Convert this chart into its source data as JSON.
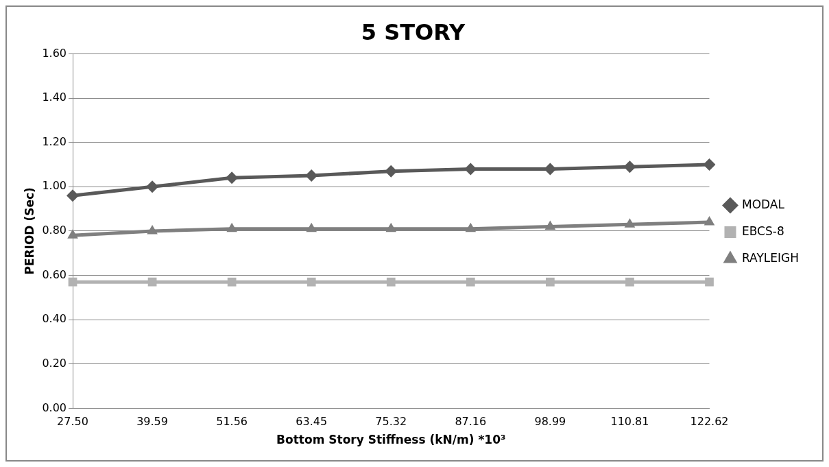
{
  "chart_data": {
    "type": "line",
    "title": "5 STORY",
    "xlabel": "Bottom Story Stiffness (kN/m) *10³",
    "ylabel": "PERIOD (Sec)",
    "categories": [
      "27.50",
      "39.59",
      "51.56",
      "63.45",
      "75.32",
      "87.16",
      "98.99",
      "110.81",
      "122.62"
    ],
    "series": [
      {
        "name": "MODAL",
        "color": "#595959",
        "marker": "diamond",
        "values": [
          0.96,
          1.0,
          1.04,
          1.05,
          1.07,
          1.08,
          1.08,
          1.09,
          1.1
        ]
      },
      {
        "name": "EBCS-8",
        "color": "#b2b2b2",
        "marker": "square",
        "values": [
          0.57,
          0.57,
          0.57,
          0.57,
          0.57,
          0.57,
          0.57,
          0.57,
          0.57
        ]
      },
      {
        "name": "RAYLEIGH",
        "color": "#7f7f7f",
        "marker": "triangle",
        "values": [
          0.78,
          0.8,
          0.81,
          0.81,
          0.81,
          0.81,
          0.82,
          0.83,
          0.84
        ]
      }
    ],
    "ylim": [
      0,
      1.6
    ],
    "yticks": [
      {
        "value": 0,
        "label": "0.00"
      },
      {
        "value": 0.2,
        "label": "0.20"
      },
      {
        "value": 0.4,
        "label": "0.40"
      },
      {
        "value": 0.6,
        "label": "0.60"
      },
      {
        "value": 0.8,
        "label": "0.80"
      },
      {
        "value": 1.0,
        "label": "1.00"
      },
      {
        "value": 1.2,
        "label": "1.20"
      },
      {
        "value": 1.4,
        "label": "1.40"
      },
      {
        "value": 1.6,
        "label": "1.60"
      }
    ],
    "grid": "y",
    "legend": "right"
  }
}
